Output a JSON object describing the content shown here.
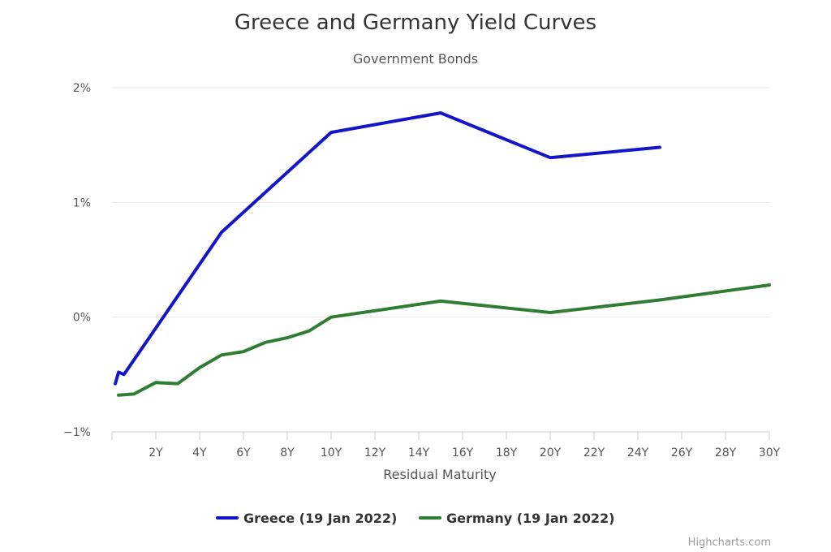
{
  "chart_data": {
    "type": "line",
    "title": "Greece and Germany Yield Curves",
    "subtitle": "Government Bonds",
    "xlabel": "Residual Maturity",
    "ylabel": "",
    "xlim": [
      0,
      30
    ],
    "ylim": [
      -1,
      2
    ],
    "x_ticks": [
      "2Y",
      "4Y",
      "6Y",
      "8Y",
      "10Y",
      "12Y",
      "14Y",
      "16Y",
      "18Y",
      "20Y",
      "22Y",
      "24Y",
      "26Y",
      "28Y",
      "30Y"
    ],
    "y_ticks": [
      "−1%",
      "0%",
      "1%",
      "2%"
    ],
    "grid": true,
    "legend_position": "bottom",
    "series": [
      {
        "name": "Greece (19 Jan 2022)",
        "color": "#1414c8",
        "points": [
          [
            0.15,
            -0.58
          ],
          [
            0.3,
            -0.48
          ],
          [
            0.55,
            -0.5
          ],
          [
            5,
            0.74
          ],
          [
            10,
            1.61
          ],
          [
            15,
            1.78
          ],
          [
            20,
            1.39
          ],
          [
            25,
            1.48
          ]
        ]
      },
      {
        "name": "Germany (19 Jan 2022)",
        "color": "#2e7d32",
        "points": [
          [
            0.3,
            -0.68
          ],
          [
            1,
            -0.67
          ],
          [
            2,
            -0.57
          ],
          [
            3,
            -0.58
          ],
          [
            4,
            -0.44
          ],
          [
            5,
            -0.33
          ],
          [
            6,
            -0.3
          ],
          [
            7,
            -0.22
          ],
          [
            8,
            -0.18
          ],
          [
            9,
            -0.12
          ],
          [
            10,
            0.0
          ],
          [
            15,
            0.14
          ],
          [
            20,
            0.04
          ],
          [
            25,
            0.15
          ],
          [
            30,
            0.28
          ]
        ]
      }
    ]
  },
  "credits": "Highcharts.com"
}
